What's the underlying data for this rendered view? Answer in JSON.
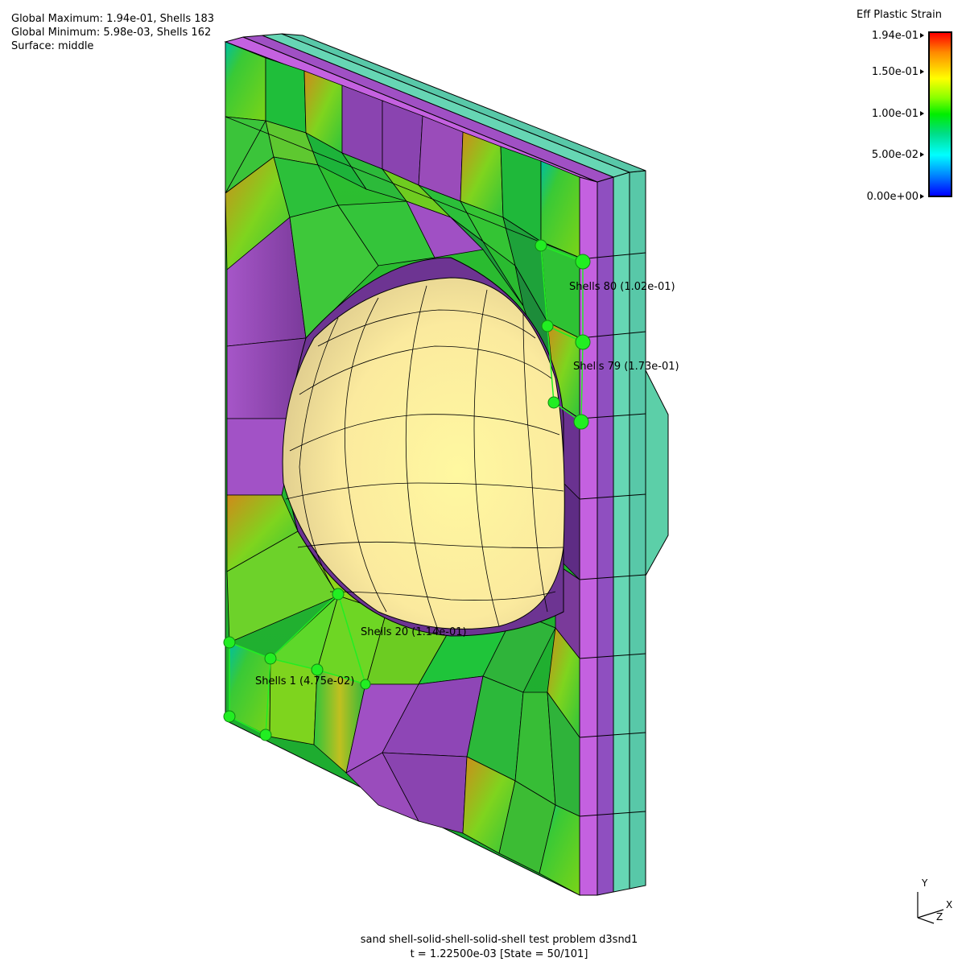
{
  "info": {
    "global_max": "Global Maximum: 1.94e-01, Shells 183",
    "global_min": "Global Minimum: 5.98e-03, Shells 162",
    "surface": "Surface: middle"
  },
  "legend": {
    "title": "Eff Plastic Strain",
    "ticks": [
      "1.94e-01",
      "1.50e-01",
      "1.00e-01",
      "5.00e-02",
      "0.00e+00"
    ],
    "colors": [
      "#ff0000",
      "#ffff00",
      "#00ee00",
      "#00ffff",
      "#0000ff"
    ]
  },
  "annotations": [
    {
      "label": "Shells 80 (1.02e-01)"
    },
    {
      "label": "Shells 79 (1.73e-01)"
    },
    {
      "label": "Shells 20 (1.14e-01)"
    },
    {
      "label": "Shells 1 (4.75e-02)"
    }
  ],
  "caption": {
    "line1": "sand shell-solid-shell-solid-shell  test problem d3snd1",
    "line2": "t = 1.22500e-03 [State = 50/101]"
  },
  "axes": {
    "y": "Y",
    "x": "X",
    "z": "Z"
  },
  "colors": {
    "plate_green": "#2fc43a",
    "fringe_magenta": "#a556c9",
    "side_teal": "#66d6b4",
    "projectile": "#fff3a8",
    "marker": "#22ee22"
  }
}
